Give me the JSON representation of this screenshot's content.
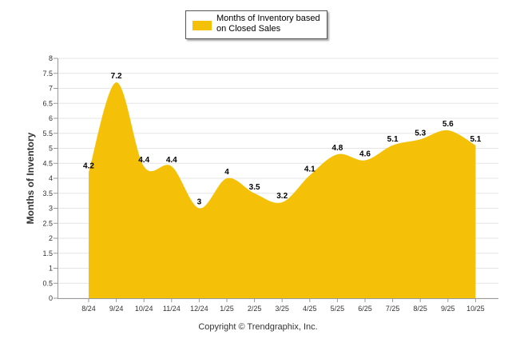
{
  "chart_data": {
    "type": "area",
    "title": "",
    "xlabel": "",
    "ylabel": "Months of Inventory",
    "ylim": [
      0,
      8
    ],
    "yticks": [
      "0",
      "0.5",
      "1",
      "1.5",
      "2",
      "2.5",
      "3",
      "3.5",
      "4",
      "4.5",
      "5",
      "5.5",
      "6",
      "6.5",
      "7",
      "7.5",
      "8"
    ],
    "categories": [
      "8/24",
      "9/24",
      "10/24",
      "11/24",
      "12/24",
      "1/25",
      "2/25",
      "3/25",
      "4/25",
      "5/25",
      "6/25",
      "7/25",
      "8/25",
      "9/25",
      "10/25"
    ],
    "series": [
      {
        "name": "Months of Inventory based on Closed Sales",
        "values": [
          4.2,
          7.2,
          4.4,
          4.4,
          3,
          4,
          3.5,
          3.2,
          4.1,
          4.8,
          4.6,
          5.1,
          5.3,
          5.6,
          5.1
        ],
        "labels": [
          "4.2",
          "7.2",
          "4.4",
          "4.4",
          "3",
          "4",
          "3.5",
          "3.2",
          "4.1",
          "4.8",
          "4.6",
          "5.1",
          "5.3",
          "5.6",
          "5.1"
        ],
        "color": "#F5C108"
      }
    ],
    "legend": {
      "position": "top-center",
      "label": "Months of Inventory based on Closed Sales"
    },
    "grid": true
  },
  "footer": {
    "copyright": "Copyright © Trendgraphix, Inc."
  },
  "colors": {
    "fill": "#F5C108",
    "grid": "#e6e6e6",
    "axis": "#999999"
  }
}
